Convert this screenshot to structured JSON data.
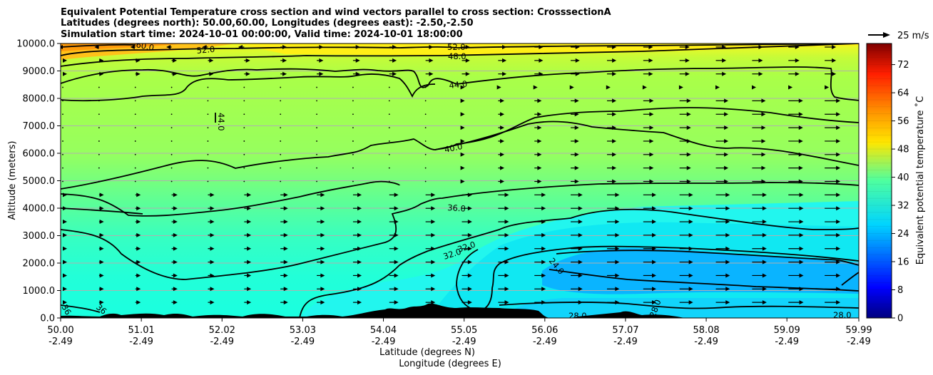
{
  "title_lines": [
    "Equivalent Potential Temperature cross section and wind vectors parallel to cross section: CrosssectionA",
    "Latitudes (degrees north): 50.00,60.00, Longitudes (degrees east): -2.50,-2.50",
    "Simulation start time: 2024-10-01 00:00:00, Valid time: 2024-10-01 18:00:00"
  ],
  "quiver_key": "25 m/s",
  "colorbar": {
    "label": "Equivalent potential temperature ˚C",
    "ticks": [
      "0",
      "8",
      "16",
      "24",
      "32",
      "40",
      "48",
      "56",
      "64",
      "72"
    ],
    "range": [
      0,
      78
    ],
    "colormap": "jet"
  },
  "chart_data": {
    "type": "contourf",
    "ylabel": "Altitude (meters)",
    "xlabel_lines": [
      "Latitude (degrees N)",
      "Longitude (degrees E)"
    ],
    "x_range": [
      50.0,
      59.99
    ],
    "y_range": [
      0,
      10000
    ],
    "x_ticks": [
      {
        "lat": "50.00",
        "lon": "-2.49"
      },
      {
        "lat": "51.01",
        "lon": "-2.49"
      },
      {
        "lat": "52.02",
        "lon": "-2.49"
      },
      {
        "lat": "53.03",
        "lon": "-2.49"
      },
      {
        "lat": "54.04",
        "lon": "-2.49"
      },
      {
        "lat": "55.05",
        "lon": "-2.49"
      },
      {
        "lat": "56.06",
        "lon": "-2.49"
      },
      {
        "lat": "57.07",
        "lon": "-2.49"
      },
      {
        "lat": "58.08",
        "lon": "-2.49"
      },
      {
        "lat": "59.09",
        "lon": "-2.49"
      },
      {
        "lat": "59.99",
        "lon": "-2.49"
      }
    ],
    "y_ticks": [
      "0.0",
      "1000.0",
      "2000.0",
      "3000.0",
      "4000.0",
      "5000.0",
      "6000.0",
      "7000.0",
      "8000.0",
      "9000.0",
      "10000.0"
    ],
    "grid": "horizontal",
    "contour_labels": [
      "60.0",
      "52.0",
      "52.0",
      "48.0",
      "44.0",
      "44.0",
      "40.0",
      "36.0",
      "32.0",
      "32.0",
      "24.0",
      "28.0",
      "28.0",
      "28.0",
      "36",
      "36"
    ]
  }
}
